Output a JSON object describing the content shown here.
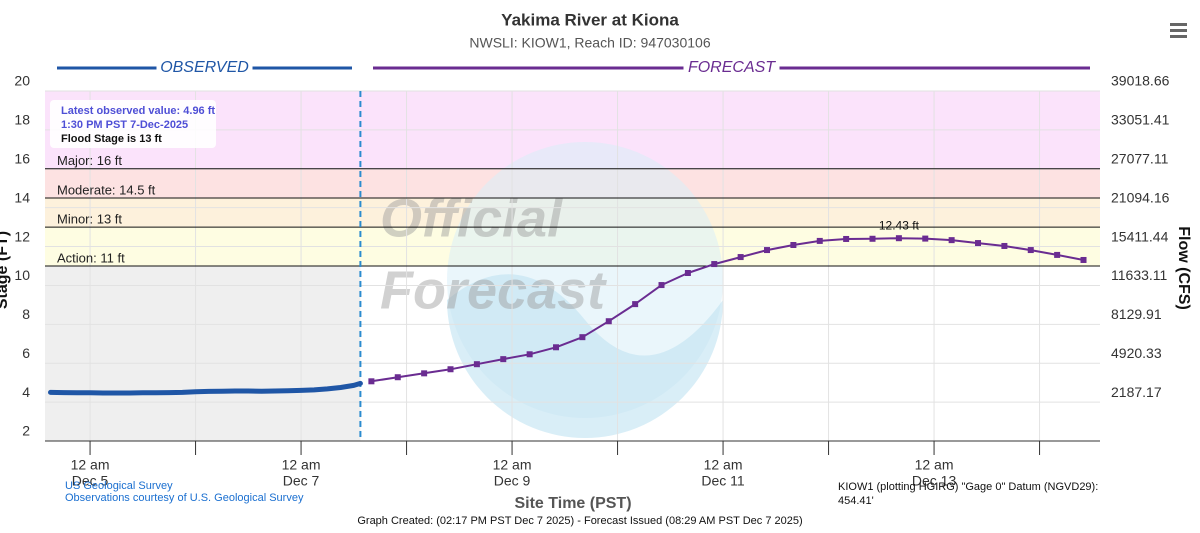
{
  "chart_data": {
    "type": "hydrograph",
    "title": "Yakima River at Kiona",
    "subtitle": "NWSLI: KIOW1, Reach ID: 947030106",
    "ylabel": "Stage (FT)",
    "y2label": "Flow (CFS)",
    "xlabel": "Site Time (PST)",
    "ylim": [
      2,
      20
    ],
    "yticks": [
      2,
      4,
      6,
      8,
      10,
      12,
      14,
      16,
      18,
      20
    ],
    "y2ticks": [
      39018.66,
      33051.41,
      27077.11,
      21094.16,
      15411.44,
      11633.11,
      8129.91,
      4920.33,
      2187.17
    ],
    "y2tick_stages": [
      20,
      18,
      16,
      14,
      12,
      10,
      8,
      6,
      4
    ],
    "xlim": [
      "2025-12-04T13:45",
      "2025-12-14T13:45"
    ],
    "xticks": [
      {
        "value": "2025-12-05T00:00",
        "label": [
          "12 am",
          "Dec 5"
        ]
      },
      {
        "value": "2025-12-07T00:00",
        "label": [
          "12 am",
          "Dec 7"
        ]
      },
      {
        "value": "2025-12-09T00:00",
        "label": [
          "12 am",
          "Dec 9"
        ]
      },
      {
        "value": "2025-12-11T00:00",
        "label": [
          "12 am",
          "Dec 11"
        ]
      },
      {
        "value": "2025-12-13T00:00",
        "label": [
          "12 am",
          "Dec 13"
        ]
      }
    ],
    "xminor": [
      "2025-12-06T00:00",
      "2025-12-08T00:00",
      "2025-12-10T00:00",
      "2025-12-12T00:00",
      "2025-12-14T00:00"
    ],
    "grid": true,
    "flood_stages": [
      {
        "label": "Major: 16 ft",
        "value": 16,
        "color": "#fbe3fb"
      },
      {
        "label": "Moderate: 14.5 ft",
        "value": 14.5,
        "color": "#fde2e2"
      },
      {
        "label": "Minor: 13 ft",
        "value": 13,
        "color": "#fdf1dc"
      },
      {
        "label": "Action: 11 ft",
        "value": 11,
        "color": "#fefde2"
      }
    ],
    "info": [
      "Latest observed value: 4.96 ft",
      "1:30 PM PST 7-Dec-2025",
      "Flood Stage is 13 ft"
    ],
    "peak": {
      "x": "2025-12-12T16:00",
      "value": 12.43,
      "label": "12.43 ft"
    },
    "watermark": [
      "Official",
      "Forecast"
    ],
    "series": [
      {
        "name": "OBSERVED",
        "color": "#1f56a6",
        "x": [
          "2025-12-04T15:00",
          "2025-12-04T18:00",
          "2025-12-04T21:00",
          "2025-12-05T00:00",
          "2025-12-05T03:00",
          "2025-12-05T06:00",
          "2025-12-05T09:00",
          "2025-12-05T12:00",
          "2025-12-05T15:00",
          "2025-12-05T18:00",
          "2025-12-05T21:00",
          "2025-12-06T00:00",
          "2025-12-06T03:00",
          "2025-12-06T06:00",
          "2025-12-06T09:00",
          "2025-12-06T12:00",
          "2025-12-06T15:00",
          "2025-12-06T18:00",
          "2025-12-06T21:00",
          "2025-12-07T00:00",
          "2025-12-07T03:00",
          "2025-12-07T06:00",
          "2025-12-07T09:00",
          "2025-12-07T12:00",
          "2025-12-07T13:30"
        ],
        "values": [
          4.5,
          4.49,
          4.48,
          4.48,
          4.47,
          4.47,
          4.47,
          4.48,
          4.48,
          4.49,
          4.5,
          4.53,
          4.55,
          4.56,
          4.57,
          4.57,
          4.56,
          4.57,
          4.58,
          4.6,
          4.63,
          4.68,
          4.75,
          4.86,
          4.96
        ]
      },
      {
        "name": "FORECAST",
        "color": "#6a2c91",
        "x": [
          "2025-12-07T16:00",
          "2025-12-07T22:00",
          "2025-12-08T04:00",
          "2025-12-08T10:00",
          "2025-12-08T16:00",
          "2025-12-08T22:00",
          "2025-12-09T04:00",
          "2025-12-09T10:00",
          "2025-12-09T16:00",
          "2025-12-09T22:00",
          "2025-12-10T04:00",
          "2025-12-10T10:00",
          "2025-12-10T16:00",
          "2025-12-10T22:00",
          "2025-12-11T04:00",
          "2025-12-11T10:00",
          "2025-12-11T16:00",
          "2025-12-11T22:00",
          "2025-12-12T04:00",
          "2025-12-12T10:00",
          "2025-12-12T16:00",
          "2025-12-12T22:00",
          "2025-12-13T04:00",
          "2025-12-13T10:00",
          "2025-12-13T16:00",
          "2025-12-13T22:00",
          "2025-12-14T04:00",
          "2025-12-14T10:00"
        ],
        "values": [
          5.07,
          5.28,
          5.48,
          5.69,
          5.95,
          6.21,
          6.46,
          6.82,
          7.34,
          8.16,
          9.04,
          10.02,
          10.64,
          11.1,
          11.46,
          11.82,
          12.08,
          12.29,
          12.39,
          12.4,
          12.43,
          12.41,
          12.33,
          12.18,
          12.03,
          11.82,
          11.57,
          11.31
        ]
      }
    ],
    "footer": {
      "source_link": "US Geological Survey",
      "courtesy": "Observations courtesy of U.S. Geological Survey",
      "created": "Graph Created: (02:17 PM PST Dec 7 2025) - Forecast Issued (08:29 AM PST Dec 7 2025)",
      "datum": [
        "KIOW1 (plotting HGIRG) \"Gage 0\" Datum (NGVD29):",
        "454.41'"
      ]
    }
  }
}
